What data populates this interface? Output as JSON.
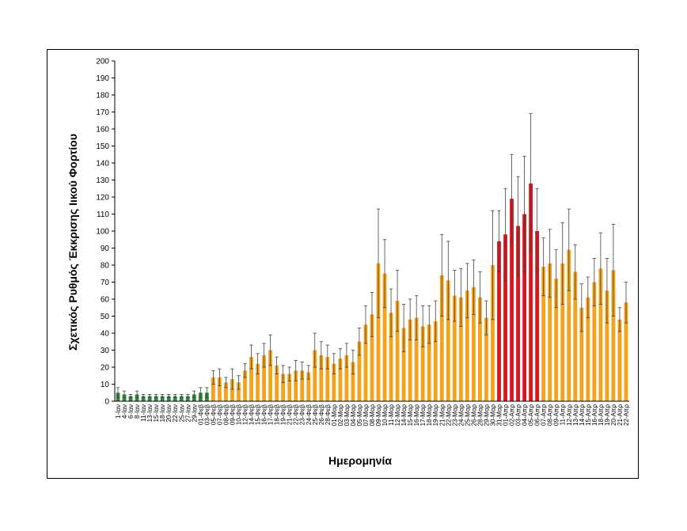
{
  "chart_data": {
    "type": "bar",
    "title": "",
    "xlabel": "Ημερομηνία",
    "ylabel": "Σχετικός Ρυθμός Έκκρισης Ιικού Φορτίου",
    "ylim": [
      0,
      200
    ],
    "yticks": [
      0,
      10,
      20,
      30,
      40,
      50,
      60,
      70,
      80,
      90,
      100,
      110,
      120,
      130,
      140,
      150,
      160,
      170,
      180,
      190,
      200
    ],
    "grid": false,
    "legend": "none",
    "colors": {
      "green": "#2e8b3c",
      "orange": "#f4a21b",
      "red": "#dc141e",
      "error_bar": "#404040",
      "axis": "#000000"
    },
    "categories": [
      "1-Ιαν",
      "4-Ιαν",
      "6-Ιαν",
      "8-Ιαν",
      "11-Ιαν",
      "13-Ιαν",
      "15-Ιαν",
      "18-Ιαν",
      "20-Ιαν",
      "22-Ιαν",
      "25-Ιαν",
      "27-Ιαν",
      "29-Ιαν",
      "01-Φεβ",
      "03-Φεβ",
      "05-Φεβ",
      "07-Φεβ",
      "08-Φεβ",
      "09-Φεβ",
      "10-Φεβ",
      "12-Φεβ",
      "14-Φεβ",
      "15-Φεβ",
      "16-Φεβ",
      "17-Φεβ",
      "18-Φεβ",
      "19-Φεβ",
      "21-Φεβ",
      "22-Φεβ",
      "23-Φεβ",
      "24-Φεβ",
      "25-Φεβ",
      "26-Φεβ",
      "28-Φεβ",
      "01-Μαρ",
      "02-Μαρ",
      "03-Μαρ",
      "04-Μαρ",
      "05-Μαρ",
      "07-Μαρ",
      "08-Μαρ",
      "09-Μαρ",
      "10-Μαρ",
      "11-Μαρ",
      "12-Μαρ",
      "14-Μαρ",
      "15-Μαρ",
      "16-Μαρ",
      "17-Μαρ",
      "18-Μαρ",
      "19-Μαρ",
      "21-Μαρ",
      "22-Μαρ",
      "23-Μαρ",
      "24-Μαρ",
      "25-Μαρ",
      "26-Μαρ",
      "28-Μαρ",
      "29-Μαρ",
      "30-Μαρ",
      "31-Μαρ",
      "01-Απρ",
      "02-Απρ",
      "03-Απρ",
      "04-Απρ",
      "05-Απρ",
      "06-Απρ",
      "07-Απρ",
      "08-Απρ",
      "09-Απρ",
      "11-Απρ",
      "12-Απρ",
      "13-Απρ",
      "14-Απρ",
      "15-Απρ",
      "16-Απρ",
      "18-Απρ",
      "19-Απρ",
      "20-Απρ",
      "21-Απρ",
      "22-Απρ"
    ],
    "series": [
      {
        "values": [
          5,
          4,
          3,
          4,
          3,
          3,
          3,
          3,
          3,
          3,
          3,
          3,
          4,
          5,
          5,
          14,
          14,
          11,
          13,
          11,
          18,
          26,
          22,
          27,
          30,
          21,
          16,
          16,
          18,
          18,
          17,
          30,
          27,
          26,
          22,
          25,
          27,
          23,
          35,
          45,
          51,
          81,
          75,
          52,
          59,
          43,
          48,
          49,
          44,
          45,
          47,
          74,
          71,
          62,
          61,
          65,
          67,
          61,
          49,
          80,
          94,
          98,
          119,
          103,
          110,
          128,
          100,
          79,
          81,
          72,
          81,
          89,
          76,
          55,
          61,
          70,
          78,
          65,
          77,
          48,
          58
        ],
        "error": [
          3,
          2,
          1,
          2,
          1,
          1,
          1,
          1,
          1,
          1,
          1,
          1,
          2,
          3,
          3,
          4,
          5,
          3,
          6,
          4,
          4,
          7,
          6,
          7,
          9,
          5,
          5,
          4,
          6,
          5,
          4,
          10,
          8,
          7,
          6,
          6,
          7,
          7,
          8,
          11,
          13,
          32,
          20,
          14,
          18,
          14,
          12,
          13,
          12,
          11,
          12,
          24,
          23,
          15,
          17,
          16,
          16,
          15,
          10,
          32,
          18,
          27,
          26,
          29,
          34,
          41,
          25,
          17,
          20,
          17,
          24,
          24,
          16,
          14,
          12,
          14,
          21,
          19,
          27,
          7,
          12
        ],
        "colors": [
          "green",
          "green",
          "green",
          "green",
          "green",
          "green",
          "green",
          "green",
          "green",
          "green",
          "green",
          "green",
          "green",
          "green",
          "green",
          "orange",
          "orange",
          "orange",
          "orange",
          "orange",
          "orange",
          "orange",
          "orange",
          "orange",
          "orange",
          "orange",
          "orange",
          "orange",
          "orange",
          "orange",
          "orange",
          "orange",
          "orange",
          "orange",
          "orange",
          "orange",
          "orange",
          "orange",
          "orange",
          "orange",
          "orange",
          "orange",
          "orange",
          "orange",
          "orange",
          "orange",
          "orange",
          "orange",
          "orange",
          "orange",
          "orange",
          "orange",
          "orange",
          "orange",
          "orange",
          "orange",
          "orange",
          "orange",
          "orange",
          "orange",
          "red",
          "red",
          "red",
          "red",
          "red",
          "red",
          "red",
          "orange",
          "orange",
          "orange",
          "orange",
          "orange",
          "orange",
          "orange",
          "orange",
          "orange",
          "orange",
          "orange",
          "orange",
          "orange",
          "orange"
        ]
      }
    ]
  }
}
